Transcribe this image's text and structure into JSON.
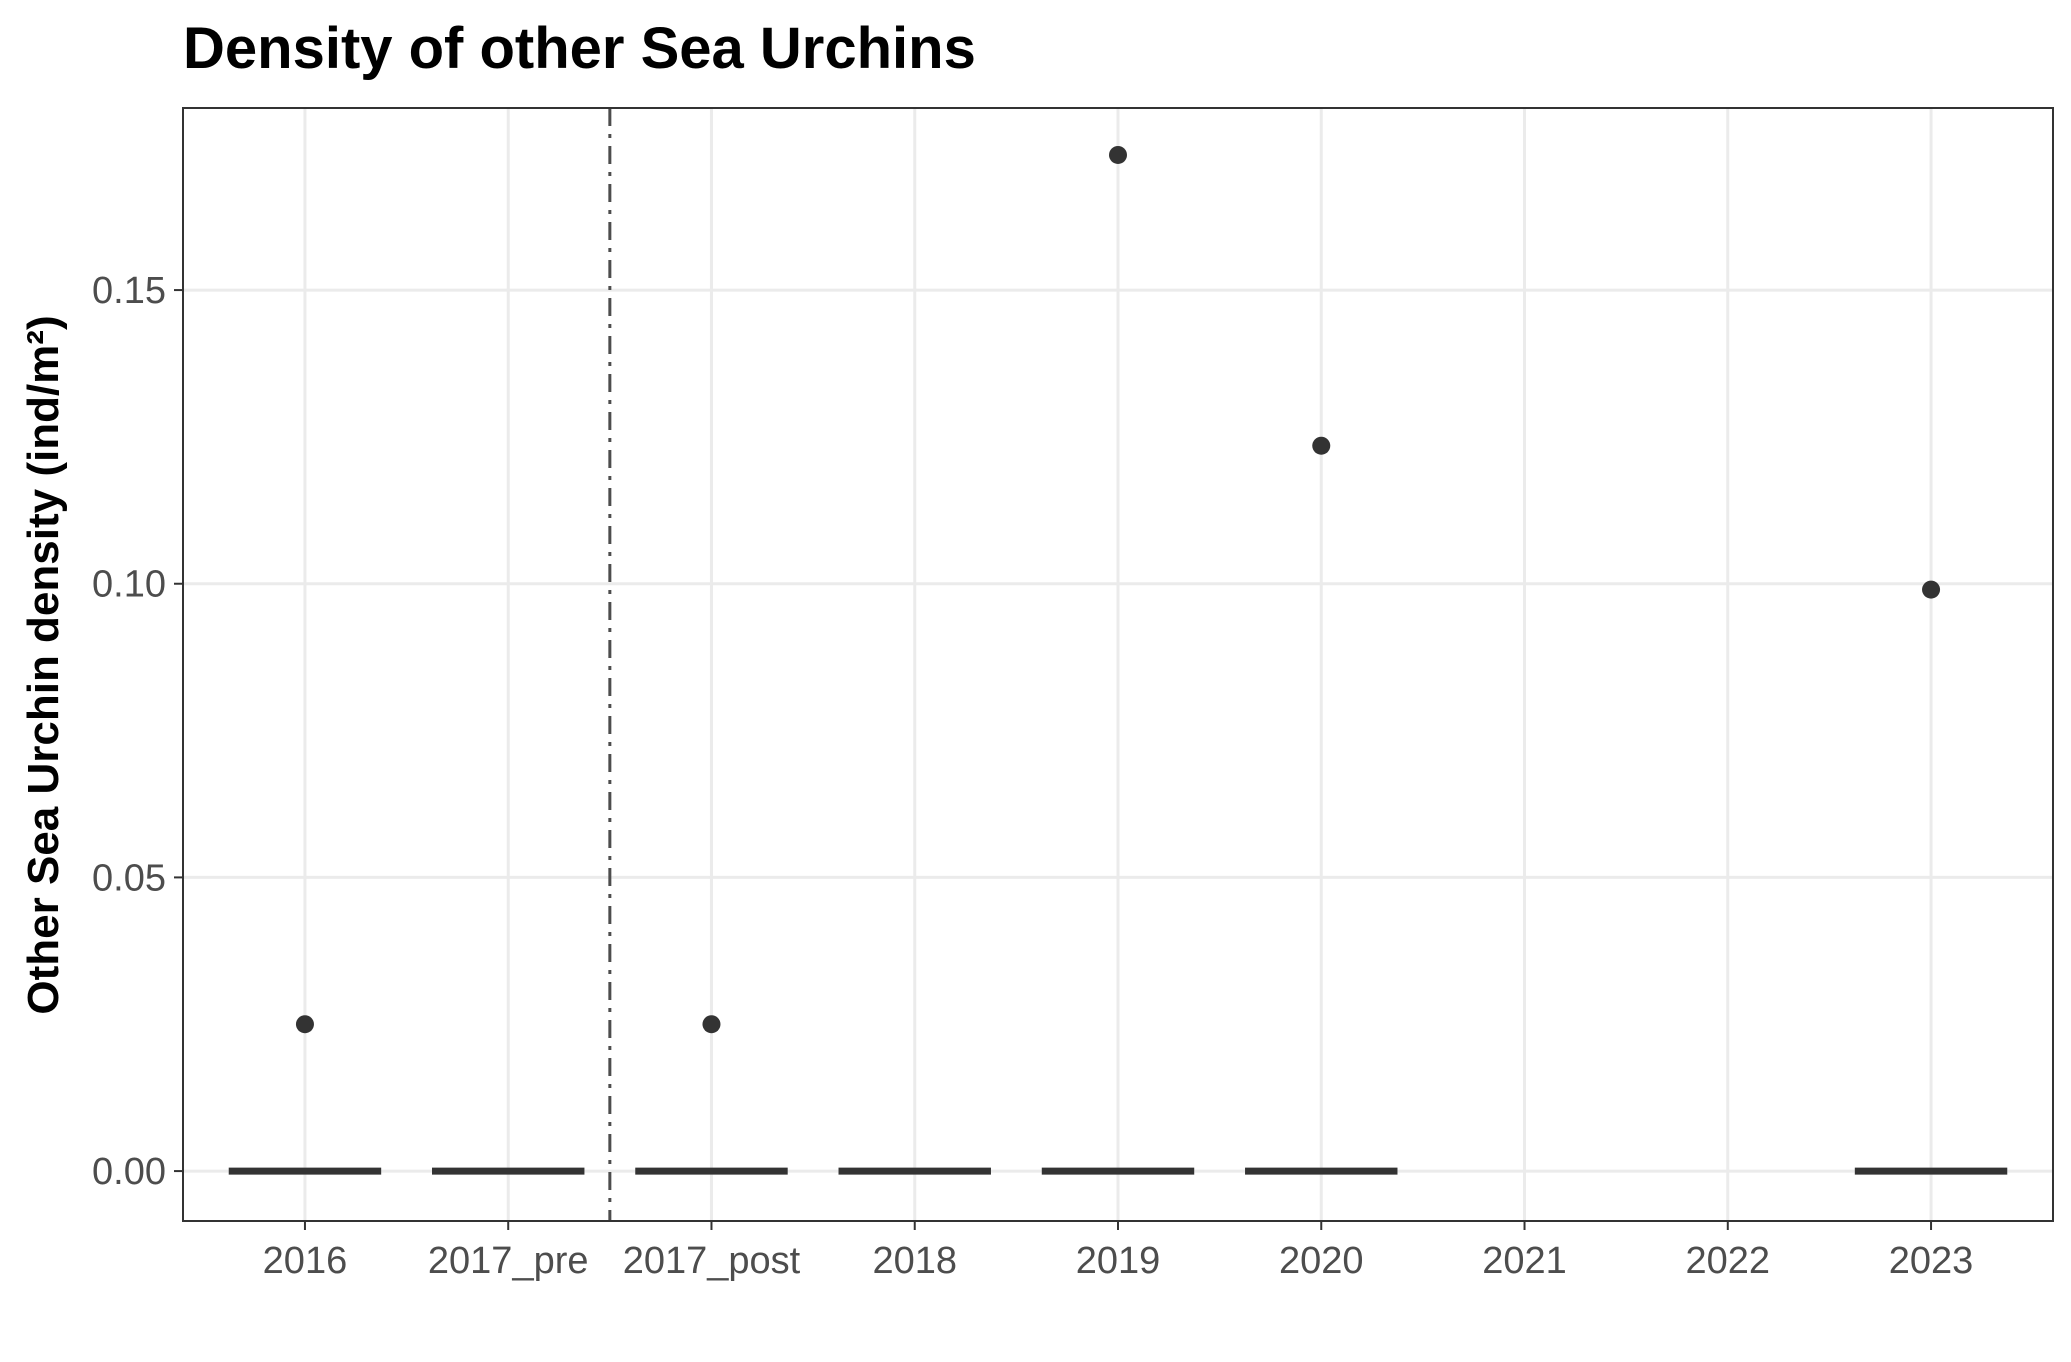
{
  "chart_data": {
    "type": "box",
    "title": "Density of other Sea Urchins",
    "xlabel": "",
    "ylabel": "Other Sea Urchin density (ind/m²)",
    "categories": [
      "2016",
      "2017_pre",
      "2017_post",
      "2018",
      "2019",
      "2020",
      "2021",
      "2022",
      "2023"
    ],
    "ylim": [
      -0.0085,
      0.181
    ],
    "yticks": [
      0.0,
      0.05,
      0.1,
      0.15
    ],
    "ytick_labels": [
      "0.00",
      "0.05",
      "0.10",
      "0.15"
    ],
    "boxes": [
      {
        "category": "2016",
        "median": 0.0,
        "q1": 0.0,
        "q3": 0.0,
        "outliers": [
          0.025
        ]
      },
      {
        "category": "2017_pre",
        "median": 0.0,
        "q1": 0.0,
        "q3": 0.0,
        "outliers": []
      },
      {
        "category": "2017_post",
        "median": 0.0,
        "q1": 0.0,
        "q3": 0.0,
        "outliers": [
          0.025
        ]
      },
      {
        "category": "2018",
        "median": 0.0,
        "q1": 0.0,
        "q3": 0.0,
        "outliers": []
      },
      {
        "category": "2019",
        "median": 0.0,
        "q1": 0.0,
        "q3": 0.0,
        "outliers": [
          0.173
        ]
      },
      {
        "category": "2020",
        "median": 0.0,
        "q1": 0.0,
        "q3": 0.0,
        "outliers": [
          0.1235
        ]
      },
      {
        "category": "2023",
        "median": 0.0,
        "q1": 0.0,
        "q3": 0.0,
        "outliers": [
          0.099
        ]
      }
    ],
    "reference_line": {
      "orientation": "vertical",
      "between": [
        "2017_pre",
        "2017_post"
      ],
      "style": "dashdot"
    },
    "grid": true,
    "legend": "none"
  }
}
